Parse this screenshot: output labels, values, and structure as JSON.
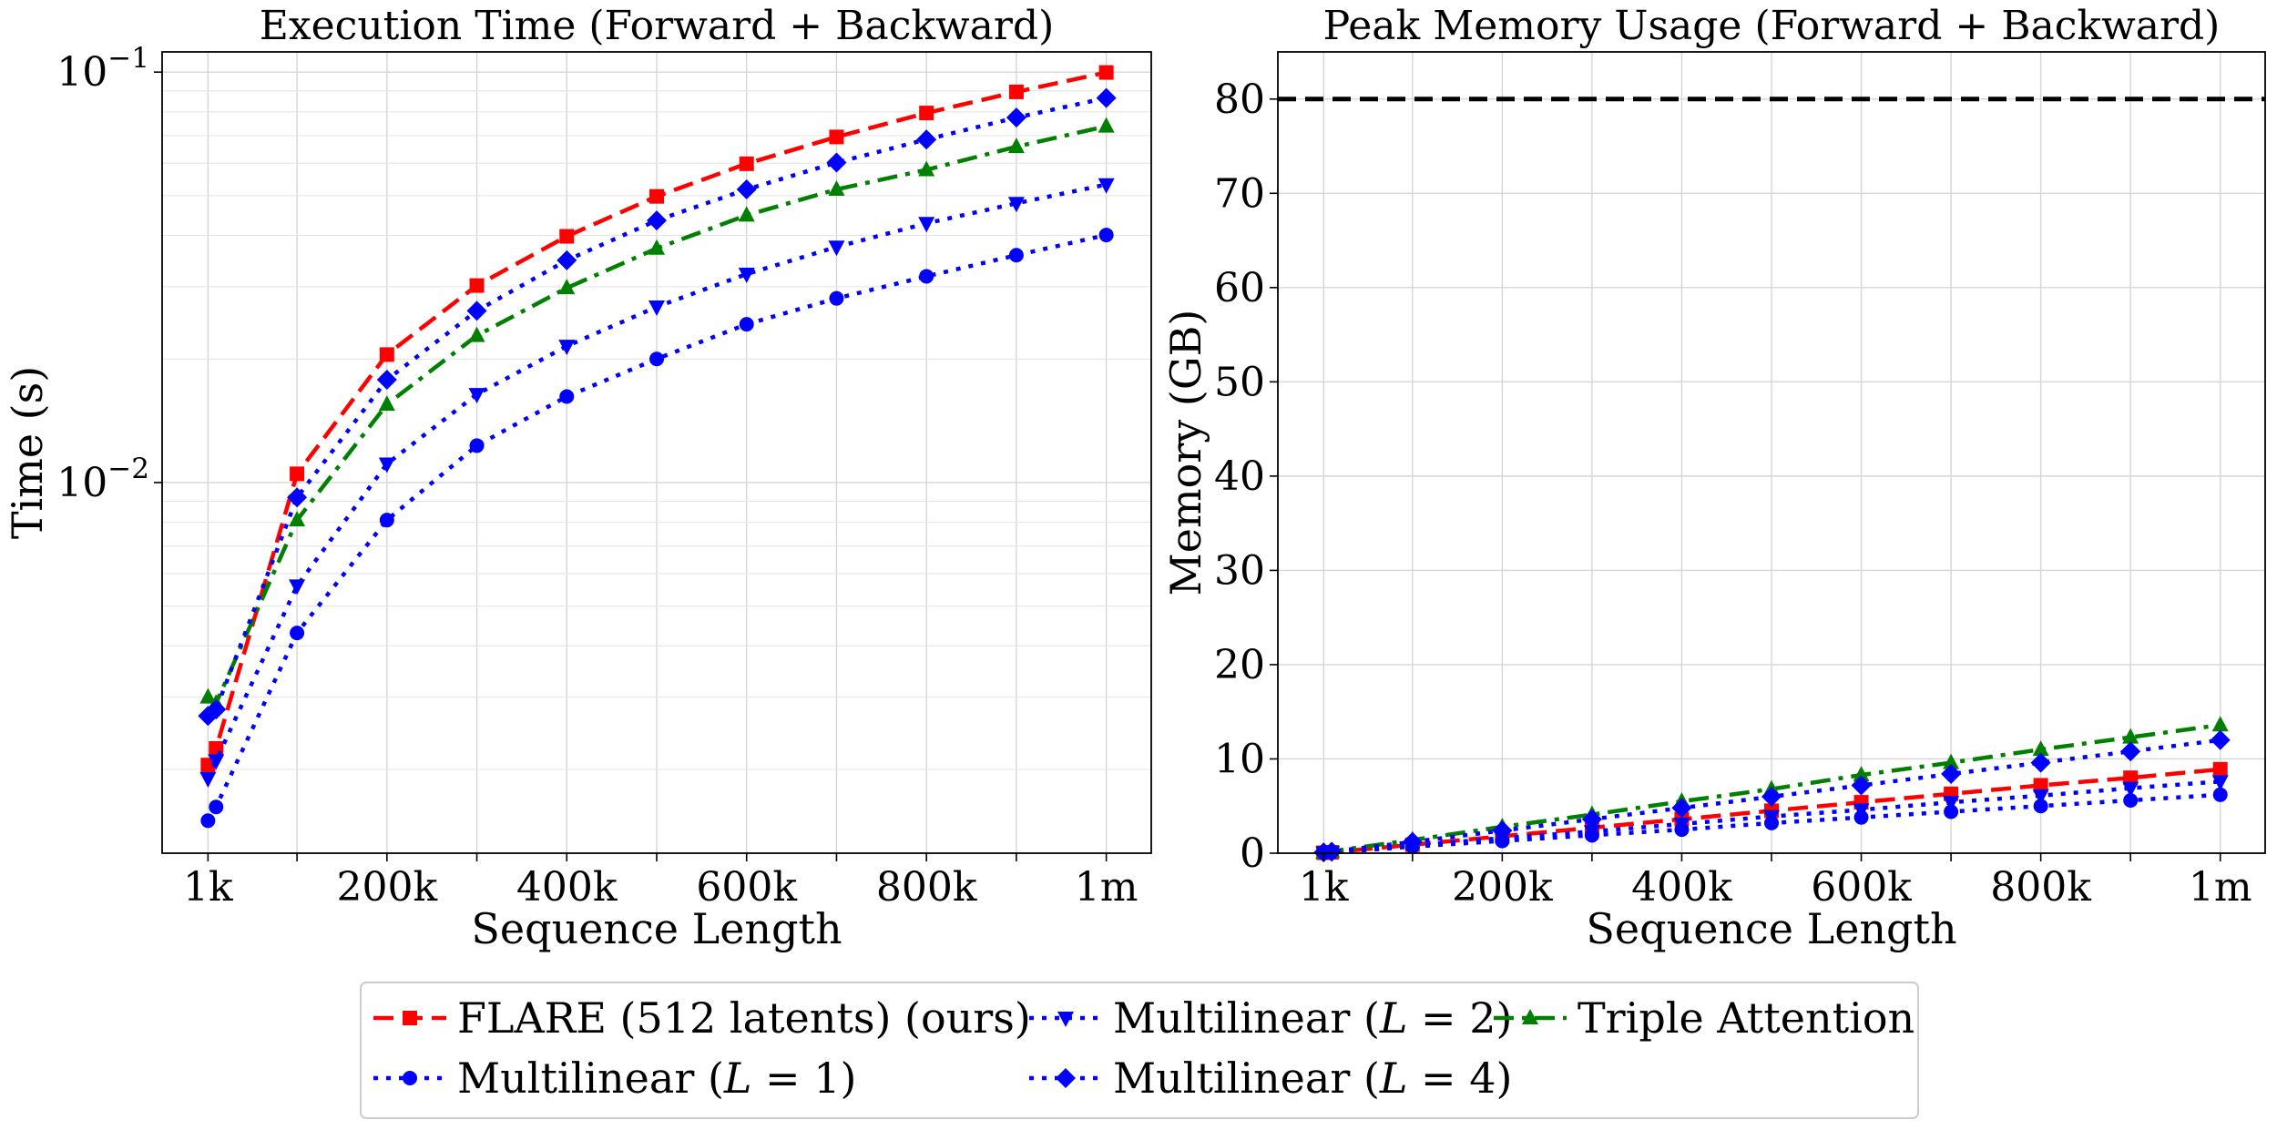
{
  "chart_data": [
    {
      "type": "line",
      "title": "Execution Time (Forward + Backward)",
      "xlabel": "Sequence Length",
      "ylabel": "Time (s)",
      "yscale": "log",
      "xlim": [
        -50000,
        1050000
      ],
      "ylim": [
        0.00125,
        0.112
      ],
      "grid": true,
      "xticks": [
        {
          "value": 1000,
          "label": "1k"
        },
        {
          "value": 100000,
          "label": ""
        },
        {
          "value": 200000,
          "label": "200k"
        },
        {
          "value": 300000,
          "label": ""
        },
        {
          "value": 400000,
          "label": "400k"
        },
        {
          "value": 500000,
          "label": ""
        },
        {
          "value": 600000,
          "label": "600k"
        },
        {
          "value": 700000,
          "label": ""
        },
        {
          "value": 800000,
          "label": "800k"
        },
        {
          "value": 900000,
          "label": ""
        },
        {
          "value": 1000000,
          "label": "1m"
        }
      ],
      "yticks": [
        {
          "value": 0.01,
          "base": "10",
          "exp": "−2"
        },
        {
          "value": 0.1,
          "base": "10",
          "exp": "−1"
        }
      ],
      "x": [
        1000,
        10000,
        100000,
        200000,
        300000,
        400000,
        500000,
        600000,
        700000,
        800000,
        900000,
        1000000
      ],
      "series": [
        {
          "name": "FLARE (512 latents) (ours)",
          "color": "#ff0000",
          "marker": "square",
          "line": "dashed",
          "values": [
            0.00205,
            0.00225,
            0.0105,
            0.0205,
            0.0302,
            0.0398,
            0.0498,
            0.0598,
            0.0695,
            0.0795,
            0.0895,
            0.0998
          ]
        },
        {
          "name": "Multilinear (L=1)",
          "color": "#0000ff",
          "marker": "circle",
          "line": "dotted",
          "values": [
            0.0015,
            0.00162,
            0.0043,
            0.0081,
            0.0123,
            0.0162,
            0.02,
            0.0243,
            0.0281,
            0.0318,
            0.0358,
            0.0401
          ]
        },
        {
          "name": "Multilinear (L=2)",
          "color": "#0000ff",
          "marker": "triangle-down",
          "line": "dotted",
          "values": [
            0.0019,
            0.0021,
            0.0056,
            0.0111,
            0.0164,
            0.0215,
            0.0268,
            0.0322,
            0.0375,
            0.0428,
            0.0479,
            0.0532
          ]
        },
        {
          "name": "Triple Attention",
          "color": "#008000",
          "marker": "triangle-up",
          "line": "dashdot",
          "values": [
            0.003,
            0.0029,
            0.0081,
            0.0155,
            0.0228,
            0.0298,
            0.0372,
            0.0448,
            0.0518,
            0.0578,
            0.0658,
            0.0738
          ]
        },
        {
          "name": "Multilinear (L=4)",
          "color": "#0000ff",
          "marker": "diamond",
          "line": "dotted",
          "values": [
            0.0027,
            0.0028,
            0.0092,
            0.0178,
            0.0262,
            0.0348,
            0.0435,
            0.0518,
            0.0602,
            0.0685,
            0.0775,
            0.0865
          ]
        }
      ]
    },
    {
      "type": "line",
      "title": "Peak Memory Usage (Forward + Backward)",
      "xlabel": "Sequence Length",
      "ylabel": "Memory (GB)",
      "yscale": "linear",
      "xlim": [
        -50000,
        1050000
      ],
      "ylim": [
        0,
        85
      ],
      "grid": true,
      "reference_line": {
        "y": 80,
        "color": "#000000",
        "style": "dashed"
      },
      "xticks": [
        {
          "value": 1000,
          "label": "1k"
        },
        {
          "value": 100000,
          "label": ""
        },
        {
          "value": 200000,
          "label": "200k"
        },
        {
          "value": 300000,
          "label": ""
        },
        {
          "value": 400000,
          "label": "400k"
        },
        {
          "value": 500000,
          "label": ""
        },
        {
          "value": 600000,
          "label": "600k"
        },
        {
          "value": 700000,
          "label": ""
        },
        {
          "value": 800000,
          "label": "800k"
        },
        {
          "value": 900000,
          "label": ""
        },
        {
          "value": 1000000,
          "label": "1m"
        }
      ],
      "yticks": [
        {
          "value": 0,
          "label": "0"
        },
        {
          "value": 10,
          "label": "10"
        },
        {
          "value": 20,
          "label": "20"
        },
        {
          "value": 30,
          "label": "30"
        },
        {
          "value": 40,
          "label": "40"
        },
        {
          "value": 50,
          "label": "50"
        },
        {
          "value": 60,
          "label": "60"
        },
        {
          "value": 70,
          "label": "70"
        },
        {
          "value": 80,
          "label": "80"
        }
      ],
      "x": [
        1000,
        10000,
        100000,
        200000,
        300000,
        400000,
        500000,
        600000,
        700000,
        800000,
        900000,
        1000000
      ],
      "series": [
        {
          "name": "FLARE (512 latents) (ours)",
          "color": "#ff0000",
          "marker": "square",
          "line": "dashed",
          "values": [
            0.05,
            0.1,
            0.9,
            1.8,
            2.7,
            3.6,
            4.5,
            5.4,
            6.3,
            7.2,
            8.0,
            8.9
          ]
        },
        {
          "name": "Multilinear (L=1)",
          "color": "#0000ff",
          "marker": "circle",
          "line": "dotted",
          "values": [
            0.03,
            0.07,
            0.7,
            1.3,
            1.9,
            2.5,
            3.2,
            3.8,
            4.4,
            5.0,
            5.6,
            6.2
          ]
        },
        {
          "name": "Multilinear (L=2)",
          "color": "#0000ff",
          "marker": "triangle-down",
          "line": "dotted",
          "values": [
            0.04,
            0.08,
            0.8,
            1.6,
            2.3,
            3.1,
            3.9,
            4.6,
            5.4,
            6.1,
            6.9,
            7.6
          ]
        },
        {
          "name": "Triple Attention",
          "color": "#008000",
          "marker": "triangle-up",
          "line": "dashdot",
          "values": [
            0.1,
            0.2,
            1.4,
            2.8,
            4.1,
            5.5,
            6.8,
            8.3,
            9.6,
            11.0,
            12.3,
            13.6
          ]
        },
        {
          "name": "Multilinear (L=4)",
          "color": "#0000ff",
          "marker": "diamond",
          "line": "dotted",
          "values": [
            0.08,
            0.16,
            1.2,
            2.4,
            3.6,
            4.8,
            6.0,
            7.2,
            8.4,
            9.6,
            10.8,
            12.0
          ]
        }
      ]
    }
  ],
  "legend": {
    "placement": "bottom-center",
    "columns": [
      [
        {
          "series_index": 0,
          "prefix": "FLARE (512 latents) (ours)",
          "var": "",
          "suffix": ""
        },
        {
          "series_index": 1,
          "prefix": "Multilinear (",
          "var": "L",
          "suffix": " = 1)"
        }
      ],
      [
        {
          "series_index": 2,
          "prefix": "Multilinear (",
          "var": "L",
          "suffix": " = 2)"
        },
        {
          "series_index": 4,
          "prefix": "Multilinear (",
          "var": "L",
          "suffix": " = 4)"
        }
      ],
      [
        {
          "series_index": 3,
          "prefix": "Triple Attention",
          "var": "",
          "suffix": ""
        }
      ]
    ]
  }
}
